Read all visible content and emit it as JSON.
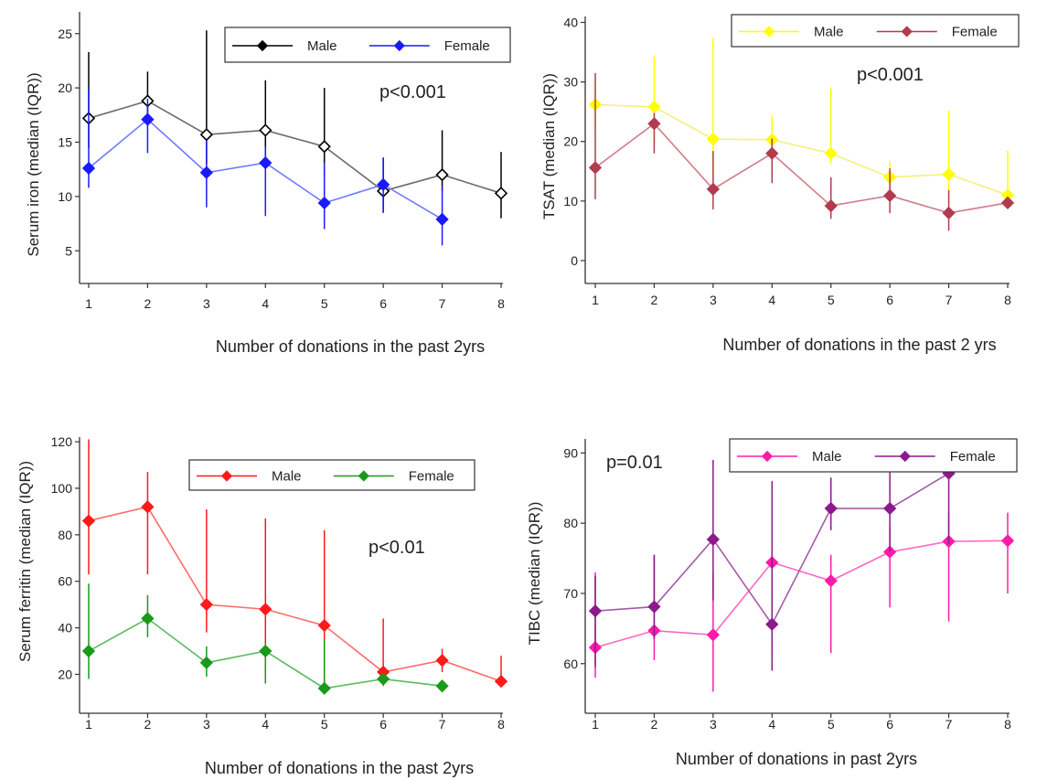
{
  "chart_data": [
    {
      "type": "line",
      "ylabel": "Serum iron (median (IQR))",
      "xlabel": "Number of donations in the past 2yrs",
      "annotation": "p<0.001",
      "x": [
        1,
        2,
        3,
        4,
        5,
        6,
        7,
        8
      ],
      "ylim": [
        3,
        27
      ],
      "yticks": [
        5,
        10,
        15,
        20,
        25
      ],
      "legend": "top-right",
      "series": [
        {
          "name": "Male",
          "color": "#000000",
          "line_color": "#6b6b6b",
          "marker": "diamond-open",
          "values": [
            17.2,
            18.8,
            15.7,
            16.1,
            14.6,
            10.5,
            12,
            10.3
          ],
          "low": [
            14.5,
            16.5,
            13,
            13,
            12,
            8.5,
            10.5,
            8
          ],
          "high": [
            23.3,
            21.5,
            25.3,
            20.7,
            20,
            13.5,
            16.1,
            14.1
          ]
        },
        {
          "name": "Female",
          "color": "#1a1aff",
          "line_color": "#6f7bff",
          "marker": "diamond",
          "values": [
            12.6,
            17.1,
            12.2,
            13.1,
            9.4,
            11.1,
            7.9,
            null
          ],
          "low": [
            10.8,
            14,
            9,
            8.2,
            7,
            8.5,
            5.5,
            null
          ],
          "high": [
            19.9,
            19,
            15.1,
            14.6,
            13.1,
            13.6,
            11,
            null
          ]
        }
      ]
    },
    {
      "type": "line",
      "ylabel": "TSAT (median (IQR))",
      "xlabel": "Number of donations in the past 2 yrs",
      "annotation": "p<0.001",
      "x": [
        1,
        2,
        3,
        4,
        5,
        6,
        7,
        8
      ],
      "ylim": [
        -2,
        41
      ],
      "yticks": [
        0,
        10,
        20,
        30,
        40
      ],
      "legend": "top-right",
      "series": [
        {
          "name": "Male",
          "color": "#ffff00",
          "line_color": "#f4f07a",
          "marker": "diamond",
          "values": [
            26.2,
            25.8,
            20.4,
            20.3,
            18,
            14,
            14.5,
            11
          ],
          "low": [
            22,
            20,
            14.5,
            15.5,
            16.3,
            10.5,
            10,
            9
          ],
          "high": [
            30,
            34.3,
            37.4,
            24.4,
            29,
            16.6,
            25.2,
            18.5
          ]
        },
        {
          "name": "Female",
          "color": "#b03c4e",
          "line_color": "#d07d88",
          "marker": "diamond",
          "values": [
            15.6,
            23,
            12,
            18,
            9.2,
            10.9,
            8,
            9.7
          ],
          "low": [
            10.3,
            18,
            8.6,
            13,
            7,
            8,
            5,
            null
          ],
          "high": [
            31.5,
            24.8,
            18.4,
            20.5,
            14,
            15.5,
            11.8,
            null
          ]
        }
      ]
    },
    {
      "type": "line",
      "ylabel": "Serum ferritin (median (IQR))",
      "xlabel": "Number of donations in the past 2yrs",
      "annotation": "p<0.01",
      "x": [
        1,
        2,
        3,
        4,
        5,
        6,
        7,
        8
      ],
      "ylim": [
        8,
        122
      ],
      "yticks": [
        20,
        40,
        60,
        80,
        100,
        120
      ],
      "legend": "top-right",
      "series": [
        {
          "name": "Male",
          "color": "#ff1a1a",
          "line_color": "#ff6b6b",
          "marker": "diamond",
          "values": [
            86,
            92,
            50,
            48,
            41,
            21,
            26,
            17
          ],
          "low": [
            63,
            63,
            38,
            19,
            15,
            15,
            21,
            15
          ],
          "high": [
            121,
            107,
            91,
            87,
            82,
            44,
            31,
            28
          ]
        },
        {
          "name": "Female",
          "color": "#1a9a1a",
          "line_color": "#5cbb5c",
          "marker": "diamond",
          "values": [
            30,
            44,
            25,
            30,
            14,
            18,
            15,
            null
          ],
          "low": [
            18,
            36,
            19,
            16,
            13,
            16,
            14,
            null
          ],
          "high": [
            59,
            54,
            32,
            33,
            35,
            20,
            17,
            null
          ]
        }
      ]
    },
    {
      "type": "line",
      "ylabel": "TIBC (median (IQR))",
      "xlabel": "Number of donations in past 2yrs",
      "annotation": "p=0.01",
      "x": [
        1,
        2,
        3,
        4,
        5,
        6,
        7,
        8
      ],
      "ylim": [
        54.5,
        92
      ],
      "yticks": [
        60,
        70,
        80,
        90
      ],
      "legend": "top-right",
      "series": [
        {
          "name": "Male",
          "color": "#ff1aaa",
          "line_color": "#ff66c4",
          "marker": "diamond",
          "values": [
            62.3,
            64.7,
            64.1,
            74.4,
            71.8,
            75.9,
            77.4,
            77.5
          ],
          "low": [
            58,
            60.5,
            56,
            62,
            61.5,
            68,
            66,
            70
          ],
          "high": [
            73,
            75.5,
            73,
            75.5,
            75.5,
            79.5,
            81.5,
            81.5
          ]
        },
        {
          "name": "Female",
          "color": "#8b1a8b",
          "line_color": "#a75aa7",
          "marker": "diamond",
          "values": [
            67.5,
            68.1,
            77.7,
            65.6,
            82.1,
            82.1,
            87.1,
            null
          ],
          "low": [
            59.5,
            63.5,
            69,
            59,
            79,
            76,
            77,
            null
          ],
          "high": [
            72.5,
            75.5,
            89,
            86,
            86.5,
            88.5,
            89.5,
            null
          ]
        }
      ]
    }
  ]
}
